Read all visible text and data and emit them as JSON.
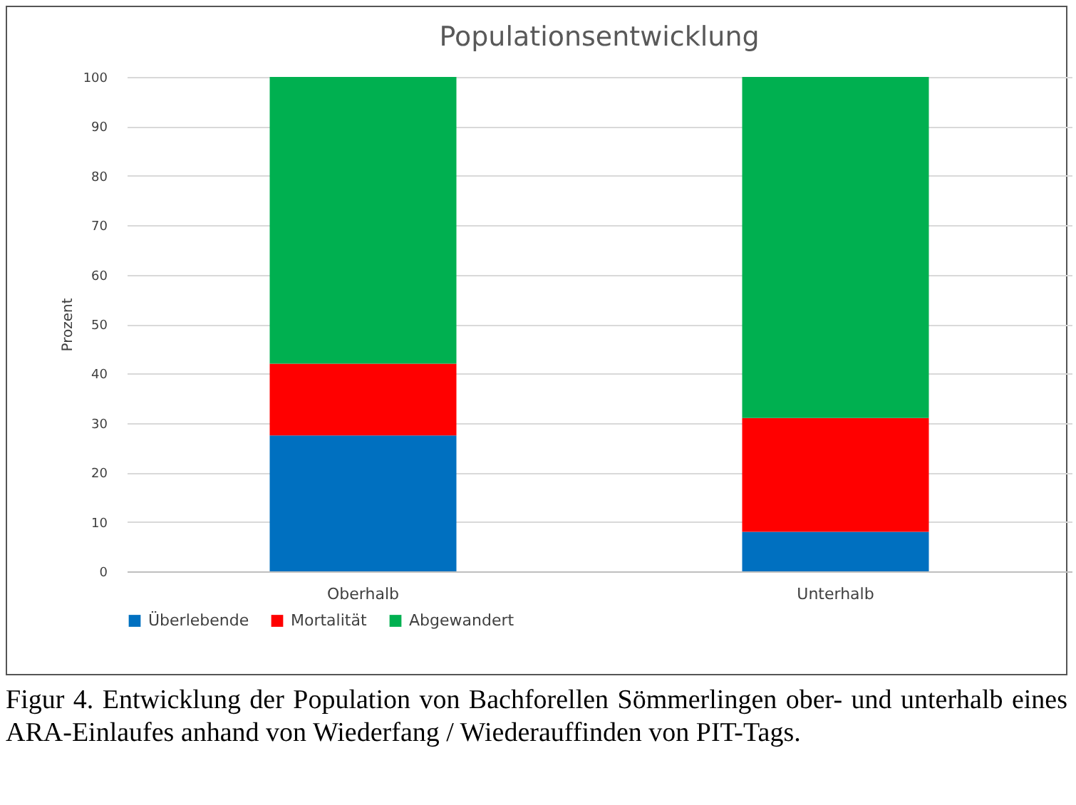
{
  "chart_data": {
    "type": "bar",
    "title": "Populationsentwicklung",
    "ylabel": "Prozent",
    "categories": [
      "Oberhalb",
      "Unterhalb"
    ],
    "stacked": true,
    "series": [
      {
        "name": "Überlebende",
        "color": "#0070c0",
        "values": [
          27.5,
          8
        ]
      },
      {
        "name": "Mortalität",
        "color": "#ff0000",
        "values": [
          14.5,
          23
        ]
      },
      {
        "name": "Abgewandert",
        "color": "#00b050",
        "values": [
          58,
          69
        ]
      }
    ],
    "ylim": [
      0,
      100
    ],
    "yticks": [
      0,
      10,
      20,
      30,
      40,
      50,
      60,
      70,
      80,
      90,
      100
    ],
    "grid": "y",
    "legend": "bottom",
    "annotations": [
      "Figur 4. Entwicklung der Population von Bachforellen Sömmerlingen ober- und unterhalb eines ARA-Einlaufes anhand von Wiederfang / Wiederauffinden von PIT-Tags."
    ]
  }
}
